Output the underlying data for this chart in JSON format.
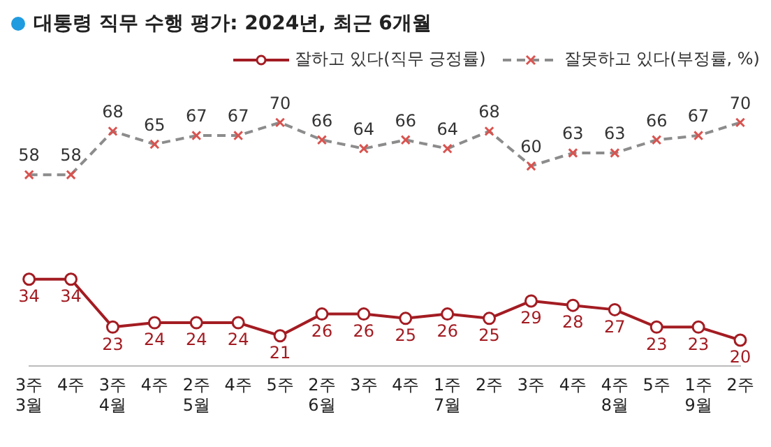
{
  "chart_data": {
    "type": "line",
    "title": "대통령 직무 수행 평가: 2024년, 최근 6개월",
    "data_labels": true,
    "legend": "top right",
    "grid": false,
    "categories": [
      "3주\n3월",
      "4주",
      "3주\n4월",
      "4주",
      "2주\n5월",
      "4주",
      "5주",
      "2주\n6월",
      "3주",
      "4주",
      "1주\n7월",
      "2주",
      "3주",
      "4주",
      "4주\n8월",
      "5주",
      "1주\n9월",
      "2주"
    ],
    "series": [
      {
        "name": "잘하고 있다(직무 긍정률)",
        "color": "#a31c22",
        "marker": "circle",
        "line_style": "solid",
        "values": [
          34,
          34,
          23,
          24,
          24,
          24,
          21,
          26,
          26,
          25,
          26,
          25,
          29,
          28,
          27,
          23,
          23,
          20
        ]
      },
      {
        "name": "잘못하고 있다(부정률, %)",
        "color": "#8c8c8c",
        "marker": "cross",
        "line_style": "dashed",
        "values": [
          58,
          58,
          68,
          65,
          67,
          67,
          70,
          66,
          64,
          66,
          64,
          68,
          60,
          63,
          63,
          66,
          67,
          70
        ]
      }
    ]
  }
}
